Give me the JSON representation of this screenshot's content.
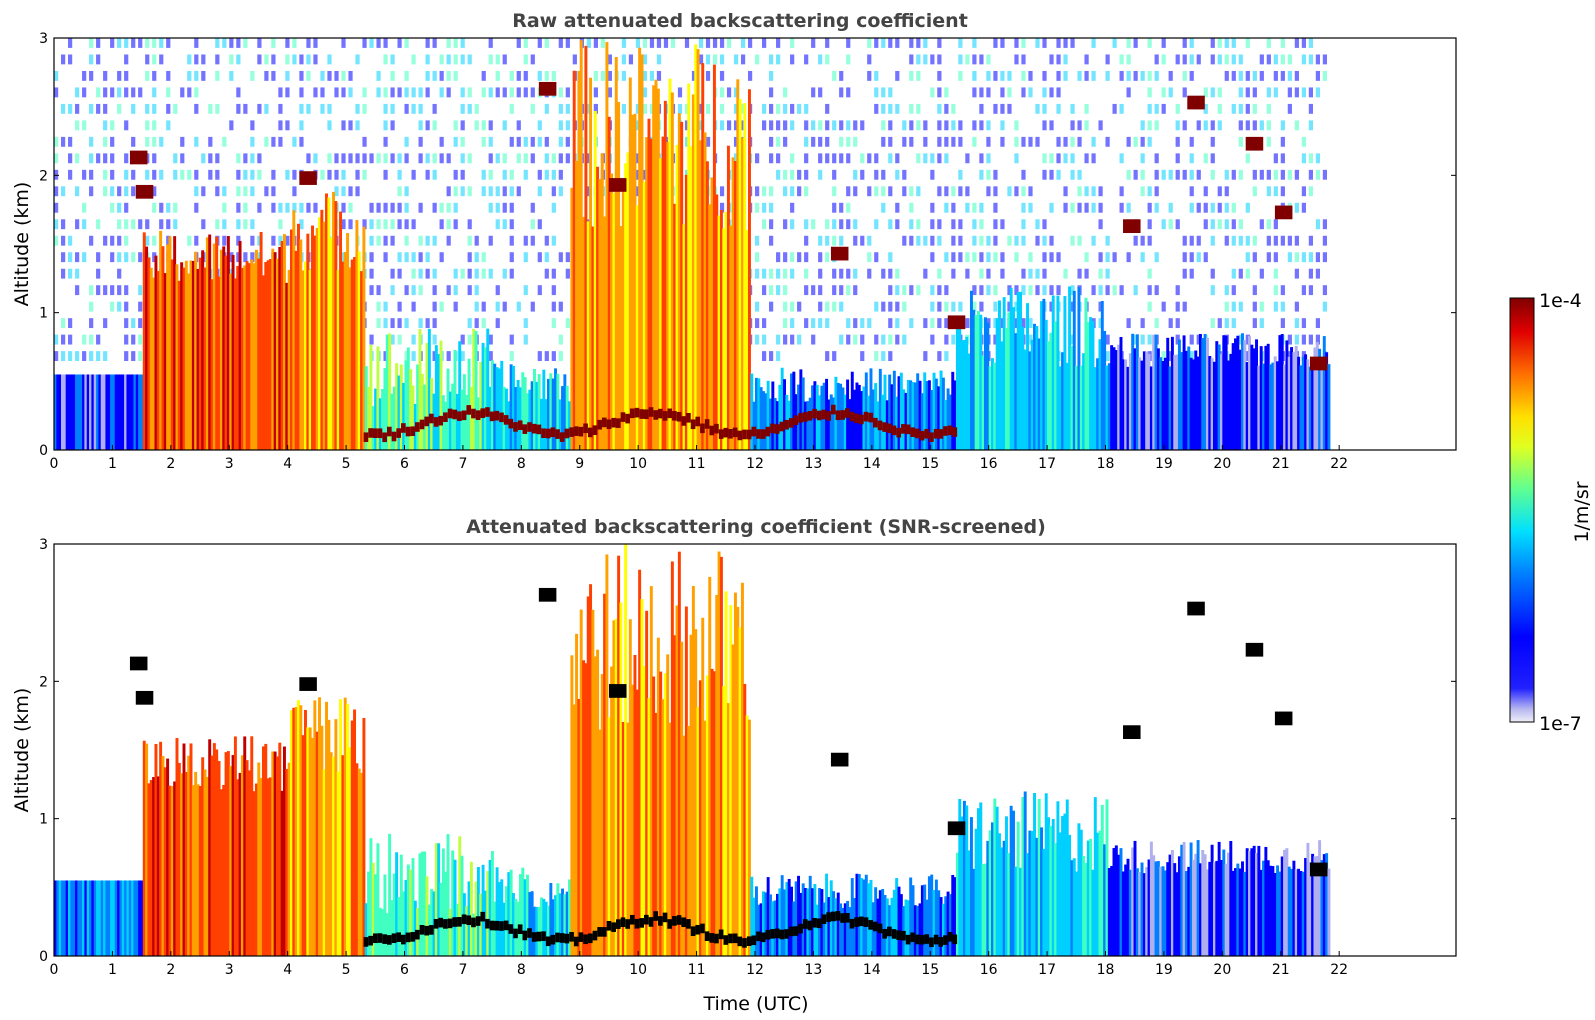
{
  "chart_data": [
    {
      "type": "heatmap",
      "title": "Raw attenuated backscattering coefficient",
      "xlabel": "",
      "ylabel": "Altitude (km)",
      "xlim": [
        0,
        24
      ],
      "ylim": [
        0,
        3
      ],
      "x_ticks": [
        0,
        1,
        2,
        3,
        4,
        5,
        6,
        7,
        8,
        9,
        10,
        11,
        12,
        13,
        14,
        15,
        16,
        17,
        18,
        19,
        20,
        21,
        22
      ],
      "y_ticks": [
        0,
        1,
        2,
        3
      ],
      "data_end_time": 21.8,
      "layers": [
        {
          "start": 1.5,
          "end": 4.0,
          "top_km": 1.3,
          "intensity": "high"
        },
        {
          "start": 4.1,
          "end": 5.3,
          "top_km": 1.6,
          "intensity": "high"
        },
        {
          "start": 5.3,
          "end": 7.5,
          "top_km": 0.25,
          "intensity": "high"
        },
        {
          "start": 7.5,
          "end": 8.8,
          "top_km": 0.4,
          "intensity": "medium"
        },
        {
          "start": 8.8,
          "end": 11.9,
          "top_km": 3.0,
          "intensity": "high"
        },
        {
          "start": 11.9,
          "end": 15.4,
          "top_km": 0.4,
          "intensity": "medium"
        },
        {
          "start": 15.4,
          "end": 18.0,
          "top_km": 1.2,
          "intensity": "low"
        },
        {
          "start": 18.0,
          "end": 21.8,
          "top_km": 0.8,
          "intensity": "low"
        }
      ]
    },
    {
      "type": "heatmap",
      "title": "Attenuated backscattering coefficient (SNR-screened)",
      "xlabel": "Time (UTC)",
      "ylabel": "Altitude (km)",
      "xlim": [
        0,
        24
      ],
      "ylim": [
        0,
        3
      ],
      "x_ticks": [
        0,
        1,
        2,
        3,
        4,
        5,
        6,
        7,
        8,
        9,
        10,
        11,
        12,
        13,
        14,
        15,
        16,
        17,
        18,
        19,
        20,
        21,
        22
      ],
      "y_ticks": [
        0,
        1,
        2,
        3
      ],
      "data_end_time": 21.8
    }
  ],
  "colorbar": {
    "label": "1/m/sr",
    "max_label": "1e-4",
    "min_label": "1e-7",
    "scale": "log",
    "colormap": "jet",
    "colors": [
      "#e6e6f8",
      "#b0b0ee",
      "#0000ff",
      "#0080ff",
      "#00d0ff",
      "#40ffc0",
      "#c0ff40",
      "#ffff00",
      "#ffa000",
      "#ff4000",
      "#c00000",
      "#800000"
    ]
  }
}
